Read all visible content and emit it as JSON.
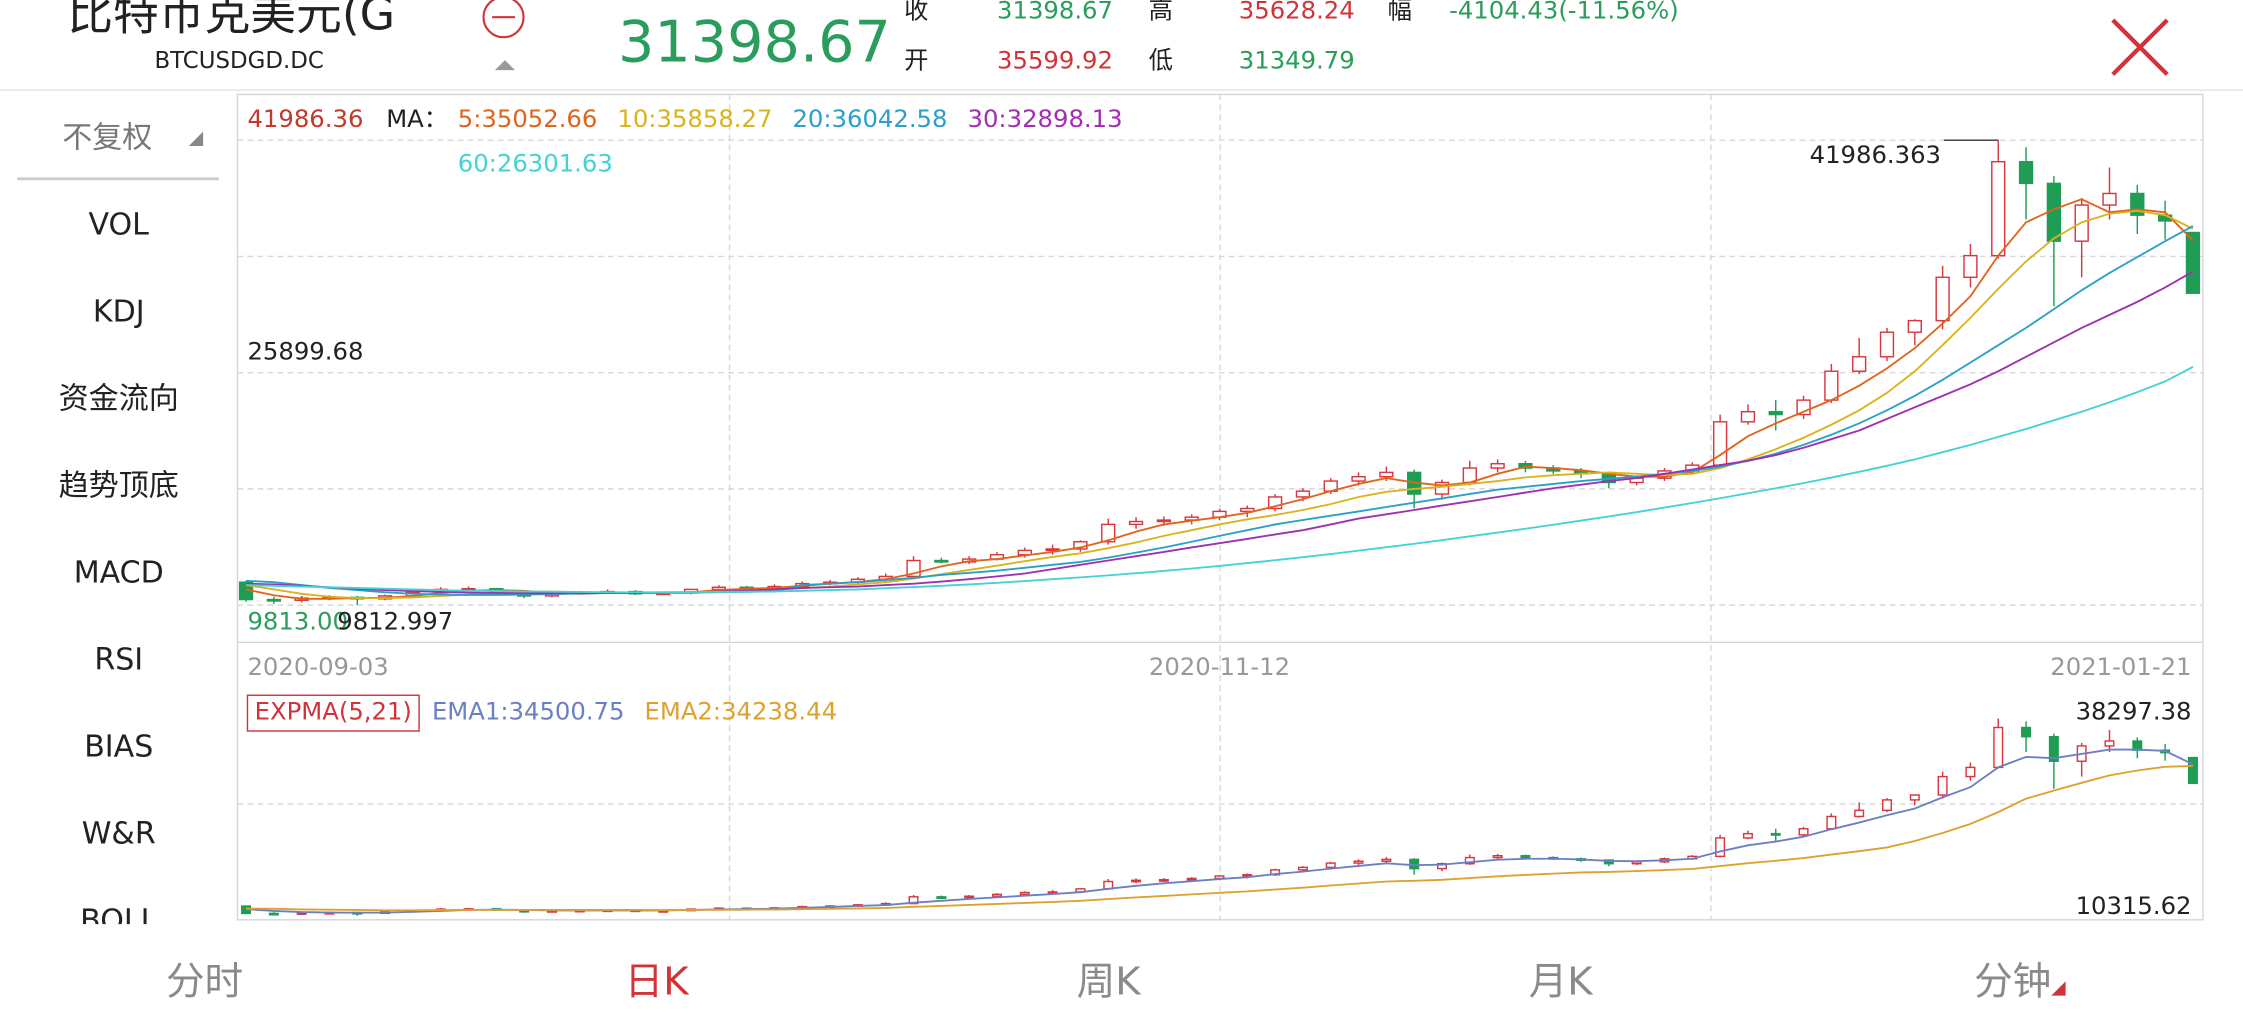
{
  "header": {
    "title": "比特币克美元(G",
    "code": "BTCUSDGD.DC",
    "close_label": "收",
    "high_label": "高",
    "range_label": "幅",
    "open_label": "开",
    "low_label": "低",
    "change": "-4104.43(-11.56%)"
  },
  "sidebar": {
    "adjust": "不复权",
    "items": [
      "VOL",
      "KDJ",
      "资金流向",
      "趋势顶底",
      "MACD",
      "RSI",
      "BIAS",
      "W&R",
      "BOLL"
    ]
  },
  "tabs": [
    "分时",
    "日K",
    "周K",
    "月K",
    "分钟"
  ],
  "chart_data": [
    {
      "type": "candlestick",
      "categories": [
        "2020-09-03",
        null,
        null,
        null,
        null,
        null,
        null,
        null,
        null,
        null,
        null,
        null,
        null,
        null,
        null,
        null,
        null,
        null,
        null,
        null,
        null,
        null,
        null,
        null,
        null,
        null,
        null,
        null,
        null,
        null,
        null,
        null,
        null,
        null,
        null,
        "2020-11-12",
        null,
        null,
        null,
        null,
        null,
        null,
        null,
        null,
        null,
        null,
        null,
        null,
        null,
        null,
        null,
        null,
        null,
        null,
        null,
        null,
        null,
        null,
        null,
        null,
        null,
        null,
        null,
        null,
        null,
        null,
        null,
        null,
        null,
        null,
        "2021-01-21"
      ],
      "open": [
        11400,
        10200,
        10150,
        10300,
        10350,
        10250,
        10450,
        10700,
        10900,
        10950,
        10750,
        10450,
        10650,
        10700,
        10750,
        10600,
        10650,
        10900,
        11050,
        10900,
        11100,
        11300,
        11400,
        11600,
        11800,
        12900,
        12800,
        13000,
        13300,
        13600,
        13700,
        14200,
        15400,
        15600,
        15700,
        15900,
        16300,
        16500,
        17300,
        17700,
        18400,
        18700,
        19000,
        17500,
        18300,
        19300,
        19600,
        19300,
        19100,
        18900,
        18300,
        18600,
        19100,
        19500,
        22500,
        23200,
        23000,
        24000,
        26000,
        27000,
        28700,
        29500,
        32500,
        34000,
        40500,
        39000,
        35000,
        37500,
        38300,
        36800,
        35599.92
      ],
      "high": [
        11500,
        10400,
        10450,
        10500,
        10450,
        10550,
        10800,
        11050,
        11100,
        11000,
        10800,
        10750,
        10800,
        10900,
        10850,
        10750,
        10950,
        11200,
        11150,
        11250,
        11450,
        11550,
        11750,
        12000,
        13200,
        13100,
        13200,
        13500,
        13800,
        14000,
        14300,
        15800,
        15900,
        15950,
        16100,
        16450,
        16700,
        17500,
        17900,
        18600,
        19000,
        19400,
        19200,
        18500,
        19800,
        19900,
        19800,
        19500,
        19300,
        19000,
        18800,
        19300,
        19700,
        23000,
        23700,
        24000,
        24300,
        26500,
        28300,
        29000,
        29600,
        33300,
        34800,
        41986.363,
        41500,
        39500,
        38000,
        40100,
        38900,
        37800,
        35628.24
      ],
      "low": [
        10050,
        9900,
        10000,
        10150,
        9812.997,
        10150,
        10350,
        10600,
        10750,
        10600,
        10300,
        10350,
        10550,
        10600,
        10500,
        10500,
        10550,
        10800,
        10800,
        10850,
        11000,
        11200,
        11300,
        11450,
        11700,
        12700,
        12650,
        12900,
        13100,
        13300,
        13500,
        14000,
        15100,
        15300,
        15400,
        15700,
        15900,
        16300,
        17000,
        17500,
        18100,
        18400,
        16500,
        17100,
        18100,
        19000,
        19000,
        18900,
        18600,
        17900,
        18100,
        18400,
        18900,
        19300,
        22300,
        21900,
        22700,
        23800,
        25800,
        26700,
        27800,
        28900,
        31800,
        33800,
        36500,
        30500,
        32500,
        36500,
        35500,
        35100,
        31349.79
      ],
      "close": [
        10200,
        10150,
        10300,
        10350,
        10250,
        10450,
        10700,
        10900,
        10950,
        10750,
        10450,
        10650,
        10700,
        10750,
        10600,
        10650,
        10900,
        11050,
        10900,
        11100,
        11300,
        11400,
        11600,
        11800,
        12900,
        12800,
        13000,
        13300,
        13600,
        13700,
        14200,
        15400,
        15600,
        15700,
        15900,
        16300,
        16500,
        17300,
        17700,
        18400,
        18700,
        19000,
        17500,
        18300,
        19300,
        19600,
        19300,
        19100,
        18900,
        18300,
        18600,
        19100,
        19500,
        22500,
        23200,
        23000,
        24000,
        26000,
        27000,
        28700,
        29500,
        32500,
        34000,
        40500,
        39000,
        35000,
        37500,
        38300,
        36800,
        36400,
        31398.67
      ],
      "up_color": "#d9363e",
      "down_color": "#1f9d55",
      "ylim": [
        9813,
        41986.36
      ],
      "yticks": [
        {
          "value": 9813,
          "label": "9813.00"
        },
        25899.68,
        41986.36
      ],
      "yminor": [
        17856.34,
        33943.02
      ],
      "grid": true,
      "ma_label": "MA：",
      "series": [
        {
          "name": "5:",
          "color": "#e0641c",
          "values": [
            10900,
            10500,
            10250,
            10250,
            10300,
            10320,
            10450,
            10650,
            10800,
            10850,
            10800,
            10650,
            10600,
            10650,
            10680,
            10650,
            10700,
            10850,
            10950,
            11000,
            11150,
            11300,
            11420,
            11600,
            12000,
            12500,
            12850,
            13000,
            13250,
            13500,
            13800,
            14300,
            14900,
            15400,
            15650,
            15900,
            16200,
            16650,
            17150,
            17700,
            18200,
            18600,
            18300,
            18100,
            18300,
            18900,
            19400,
            19300,
            19150,
            18900,
            18700,
            18700,
            19000,
            20200,
            21500,
            22400,
            23200,
            24000,
            25000,
            26200,
            27600,
            29300,
            31200,
            34000,
            36300,
            37200,
            37900,
            37000,
            37200,
            37000,
            35052.66
          ]
        },
        {
          "name": "10:",
          "color": "#d9b31c",
          "values": [
            11200,
            10900,
            10600,
            10400,
            10300,
            10300,
            10350,
            10450,
            10550,
            10650,
            10750,
            10750,
            10700,
            10700,
            10680,
            10650,
            10650,
            10700,
            10780,
            10870,
            10980,
            11100,
            11250,
            11400,
            11650,
            11950,
            12250,
            12550,
            12850,
            13150,
            13400,
            13750,
            14150,
            14600,
            15000,
            15400,
            15750,
            16050,
            16400,
            16800,
            17300,
            17650,
            17850,
            18000,
            18200,
            18400,
            18650,
            18800,
            18900,
            19000,
            18900,
            18800,
            18900,
            19300,
            19900,
            20600,
            21400,
            22300,
            23300,
            24500,
            26000,
            27800,
            29700,
            31700,
            33600,
            35200,
            36300,
            36900,
            37100,
            36800,
            35858.27
          ]
        },
        {
          "name": "20:",
          "color": "#2aa0c8",
          "values": [
            11500,
            11400,
            11200,
            11000,
            10850,
            10700,
            10600,
            10550,
            10520,
            10520,
            10550,
            10580,
            10620,
            10650,
            10680,
            10700,
            10700,
            10710,
            10730,
            10760,
            11200,
            11300,
            11400,
            11550,
            11700,
            11900,
            12050,
            12200,
            12400,
            12600,
            12800,
            13100,
            13450,
            13800,
            14200,
            14600,
            15000,
            15400,
            15700,
            16000,
            16300,
            16600,
            16900,
            17200,
            17500,
            17800,
            18000,
            18200,
            18400,
            18550,
            18700,
            18900,
            19100,
            19400,
            19800,
            20300,
            20900,
            21600,
            22400,
            23300,
            24300,
            25400,
            26600,
            27800,
            29000,
            30300,
            31600,
            32800,
            33900,
            35000,
            36042.58
          ]
        },
        {
          "name": "30:",
          "color": "#a030b0",
          "values": [
            11300,
            11250,
            11150,
            11050,
            10950,
            10850,
            10780,
            10720,
            10680,
            10650,
            10630,
            10620,
            10630,
            10650,
            10660,
            10680,
            10700,
            10750,
            10820,
            10900,
            11000,
            11050,
            11100,
            11200,
            11300,
            11450,
            11600,
            11800,
            12000,
            12300,
            12600,
            12900,
            13200,
            13500,
            13800,
            14100,
            14400,
            14700,
            15000,
            15400,
            15800,
            16100,
            16400,
            16700,
            17000,
            17300,
            17600,
            17900,
            18150,
            18400,
            18600,
            18900,
            19200,
            19500,
            19800,
            20200,
            20700,
            21300,
            21900,
            22700,
            23500,
            24300,
            25100,
            26000,
            27000,
            28000,
            29000,
            29900,
            30800,
            31800,
            32898.13
          ]
        },
        {
          "name": "60:",
          "color": "#45d2d2",
          "values": [
            11200,
            11150,
            11100,
            11050,
            11000,
            10950,
            10900,
            10850,
            10800,
            10780,
            10760,
            10740,
            10720,
            10700,
            10700,
            10700,
            10710,
            10720,
            10740,
            10760,
            10800,
            10850,
            10900,
            10980,
            11060,
            11150,
            11250,
            11360,
            11480,
            11600,
            11730,
            11870,
            12020,
            12180,
            12350,
            12530,
            12720,
            12920,
            13130,
            13350,
            13580,
            13820,
            14060,
            14310,
            14570,
            14830,
            15100,
            15380,
            15660,
            15950,
            16250,
            16560,
            16880,
            17210,
            17550,
            17900,
            18260,
            18640,
            19040,
            19460,
            19900,
            20400,
            20900,
            21450,
            22000,
            22600,
            23200,
            23850,
            24550,
            25300,
            26301.63
          ]
        }
      ]
    },
    {
      "type": "candlestick",
      "title": "EXPMA(5,21)",
      "ylim": [
        10315.62,
        38297.38
      ],
      "series": [
        {
          "name": "EMA1:",
          "color": "#6b7fc4",
          "values": [
            10900,
            10600,
            10400,
            10350,
            10320,
            10350,
            10450,
            10600,
            10750,
            10800,
            10750,
            10700,
            10680,
            10690,
            10700,
            10690,
            10750,
            10850,
            10900,
            10980,
            11100,
            11250,
            11400,
            11550,
            11950,
            12250,
            12550,
            12800,
            13100,
            13350,
            13650,
            14200,
            14700,
            15100,
            15450,
            15800,
            16100,
            16600,
            17000,
            17500,
            17950,
            18350,
            18050,
            18150,
            18550,
            18950,
            19100,
            19100,
            19000,
            18750,
            18700,
            18850,
            19100,
            20300,
            21300,
            21900,
            22700,
            23900,
            25000,
            26200,
            27300,
            29100,
            30800,
            34000,
            35700,
            35500,
            36200,
            36900,
            36900,
            36700,
            34500.75
          ]
        },
        {
          "name": "EMA2:",
          "color": "#e0a030",
          "values": [
            11000,
            10950,
            10850,
            10800,
            10750,
            10720,
            10720,
            10740,
            10760,
            10770,
            10760,
            10750,
            10750,
            10750,
            10750,
            10740,
            10760,
            10790,
            10800,
            10830,
            10880,
            10940,
            11010,
            11090,
            11270,
            11420,
            11570,
            11730,
            11900,
            12070,
            12250,
            12540,
            12800,
            13050,
            13290,
            13550,
            13790,
            14100,
            14400,
            14740,
            15080,
            15410,
            15520,
            15690,
            15960,
            16240,
            16470,
            16680,
            16860,
            16960,
            17090,
            17260,
            17460,
            17920,
            18390,
            18780,
            19230,
            19790,
            20350,
            20960,
            22000,
            23300,
            24800,
            26700,
            28900,
            30200,
            31500,
            32700,
            33500,
            34100,
            34238.44
          ]
        }
      ]
    }
  ]
}
